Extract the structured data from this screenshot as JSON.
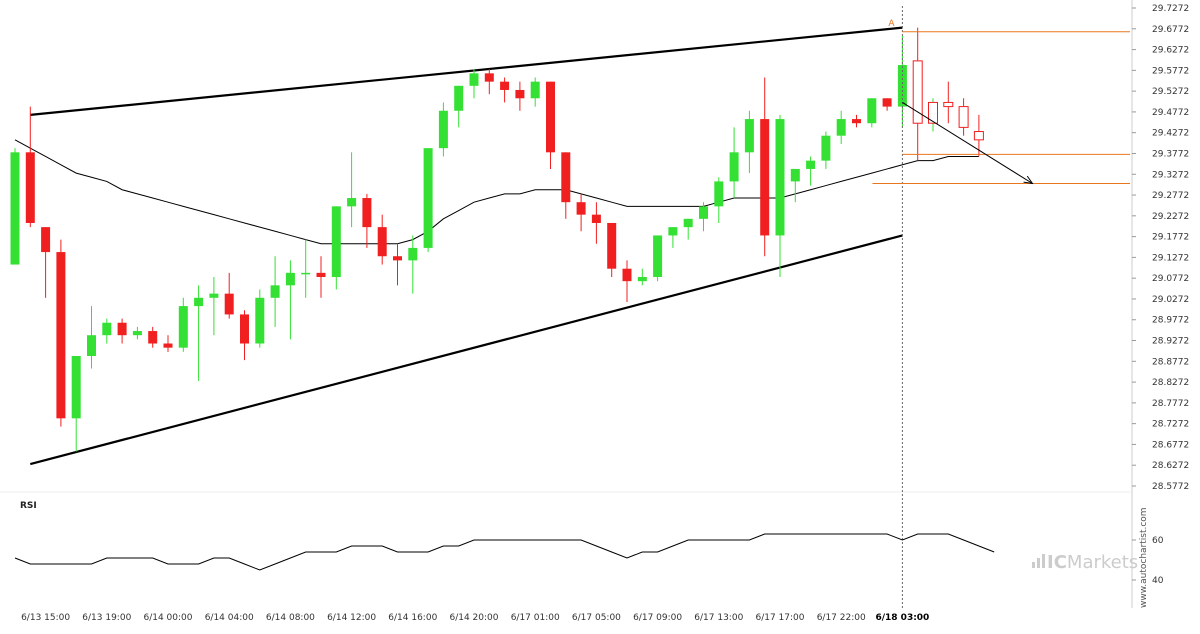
{
  "colors": {
    "up": "#33e033",
    "down": "#f02020",
    "trend_line": "#000000",
    "moving_average": "#000000",
    "signal": "#e8761e",
    "rsi": "#000000",
    "watermark": "#cccccc"
  },
  "watermark": {
    "vertical": "www.autochartist.com",
    "brand_prefix": "IC",
    "brand_suffix": "Markets"
  },
  "chart_data": [
    {
      "type": "candlestick",
      "panel": "price",
      "y_ticks": [
        "29.7272",
        "29.6772",
        "29.6272",
        "29.5772",
        "29.5272",
        "29.4772",
        "29.4272",
        "29.3772",
        "29.3272",
        "29.2772",
        "29.2272",
        "29.1772",
        "29.1272",
        "29.0772",
        "29.0272",
        "28.9772",
        "28.9272",
        "28.8772",
        "28.8272",
        "28.7772",
        "28.7272",
        "28.6772",
        "28.6272",
        "28.5772"
      ],
      "ylim": [
        28.5772,
        29.7272
      ],
      "x_ticks": [
        "6/13 15:00",
        "6/13 19:00",
        "6/14 00:00",
        "6/14 04:00",
        "6/14 08:00",
        "6/14 12:00",
        "6/14 16:00",
        "6/14 20:00",
        "6/17 01:00",
        "6/17 05:00",
        "6/17 09:00",
        "6/17 13:00",
        "6/17 17:00",
        "6/17 22:00",
        "6/18 03:00"
      ],
      "x_tick_index": [
        2,
        6,
        10,
        14,
        18,
        22,
        26,
        30,
        34,
        38,
        42,
        46,
        50,
        54,
        58
      ],
      "highlight_x_tick": "6/18 03:00",
      "candles": [
        {
          "o": 29.11,
          "h": 29.39,
          "l": 29.11,
          "c": 29.38
        },
        {
          "o": 29.38,
          "h": 29.49,
          "l": 29.2,
          "c": 29.21
        },
        {
          "o": 29.2,
          "h": 29.2,
          "l": 29.03,
          "c": 29.14
        },
        {
          "o": 29.14,
          "h": 29.17,
          "l": 28.72,
          "c": 28.74
        },
        {
          "o": 28.74,
          "h": 28.89,
          "l": 28.66,
          "c": 28.89
        },
        {
          "o": 28.89,
          "h": 29.01,
          "l": 28.86,
          "c": 28.94
        },
        {
          "o": 28.94,
          "h": 28.98,
          "l": 28.92,
          "c": 28.97
        },
        {
          "o": 28.97,
          "h": 28.98,
          "l": 28.92,
          "c": 28.94
        },
        {
          "o": 28.94,
          "h": 28.96,
          "l": 28.93,
          "c": 28.95
        },
        {
          "o": 28.95,
          "h": 28.96,
          "l": 28.91,
          "c": 28.92
        },
        {
          "o": 28.92,
          "h": 28.94,
          "l": 28.9,
          "c": 28.91
        },
        {
          "o": 28.91,
          "h": 29.03,
          "l": 28.9,
          "c": 29.01
        },
        {
          "o": 29.01,
          "h": 29.06,
          "l": 28.83,
          "c": 29.03
        },
        {
          "o": 29.03,
          "h": 29.08,
          "l": 28.94,
          "c": 29.04
        },
        {
          "o": 29.04,
          "h": 29.09,
          "l": 28.98,
          "c": 28.99
        },
        {
          "o": 28.99,
          "h": 29.0,
          "l": 28.88,
          "c": 28.92
        },
        {
          "o": 28.92,
          "h": 29.05,
          "l": 28.91,
          "c": 29.03
        },
        {
          "o": 29.03,
          "h": 29.13,
          "l": 28.96,
          "c": 29.06
        },
        {
          "o": 29.06,
          "h": 29.12,
          "l": 28.93,
          "c": 29.09
        },
        {
          "o": 29.09,
          "h": 29.17,
          "l": 29.03,
          "c": 29.09
        },
        {
          "o": 29.09,
          "h": 29.13,
          "l": 29.03,
          "c": 29.08
        },
        {
          "o": 29.08,
          "h": 29.25,
          "l": 29.05,
          "c": 29.25
        },
        {
          "o": 29.25,
          "h": 29.38,
          "l": 29.2,
          "c": 29.27
        },
        {
          "o": 29.27,
          "h": 29.28,
          "l": 29.15,
          "c": 29.2
        },
        {
          "o": 29.2,
          "h": 29.23,
          "l": 29.11,
          "c": 29.13
        },
        {
          "o": 29.13,
          "h": 29.16,
          "l": 29.06,
          "c": 29.12
        },
        {
          "o": 29.12,
          "h": 29.18,
          "l": 29.04,
          "c": 29.15
        },
        {
          "o": 29.15,
          "h": 29.39,
          "l": 29.14,
          "c": 29.39
        },
        {
          "o": 29.39,
          "h": 29.5,
          "l": 29.37,
          "c": 29.48
        },
        {
          "o": 29.48,
          "h": 29.54,
          "l": 29.44,
          "c": 29.54
        },
        {
          "o": 29.54,
          "h": 29.58,
          "l": 29.51,
          "c": 29.57
        },
        {
          "o": 29.57,
          "h": 29.58,
          "l": 29.52,
          "c": 29.55
        },
        {
          "o": 29.55,
          "h": 29.56,
          "l": 29.5,
          "c": 29.53
        },
        {
          "o": 29.53,
          "h": 29.55,
          "l": 29.48,
          "c": 29.51
        },
        {
          "o": 29.51,
          "h": 29.56,
          "l": 29.49,
          "c": 29.55
        },
        {
          "o": 29.55,
          "h": 29.55,
          "l": 29.34,
          "c": 29.38
        },
        {
          "o": 29.38,
          "h": 29.38,
          "l": 29.22,
          "c": 29.26
        },
        {
          "o": 29.26,
          "h": 29.28,
          "l": 29.19,
          "c": 29.23
        },
        {
          "o": 29.23,
          "h": 29.26,
          "l": 29.16,
          "c": 29.21
        },
        {
          "o": 29.21,
          "h": 29.21,
          "l": 29.08,
          "c": 29.1
        },
        {
          "o": 29.1,
          "h": 29.12,
          "l": 29.02,
          "c": 29.07
        },
        {
          "o": 29.07,
          "h": 29.1,
          "l": 29.06,
          "c": 29.08
        },
        {
          "o": 29.08,
          "h": 29.18,
          "l": 29.07,
          "c": 29.18
        },
        {
          "o": 29.18,
          "h": 29.2,
          "l": 29.15,
          "c": 29.2
        },
        {
          "o": 29.2,
          "h": 29.22,
          "l": 29.17,
          "c": 29.22
        },
        {
          "o": 29.22,
          "h": 29.26,
          "l": 29.19,
          "c": 29.25
        },
        {
          "o": 29.25,
          "h": 29.32,
          "l": 29.21,
          "c": 29.31
        },
        {
          "o": 29.31,
          "h": 29.44,
          "l": 29.27,
          "c": 29.38
        },
        {
          "o": 29.38,
          "h": 29.48,
          "l": 29.33,
          "c": 29.46
        },
        {
          "o": 29.46,
          "h": 29.56,
          "l": 29.13,
          "c": 29.18
        },
        {
          "o": 29.18,
          "h": 29.47,
          "l": 29.08,
          "c": 29.46
        },
        {
          "o": 29.31,
          "h": 29.34,
          "l": 29.26,
          "c": 29.34
        },
        {
          "o": 29.34,
          "h": 29.37,
          "l": 29.3,
          "c": 29.36
        },
        {
          "o": 29.36,
          "h": 29.43,
          "l": 29.34,
          "c": 29.42
        },
        {
          "o": 29.42,
          "h": 29.48,
          "l": 29.4,
          "c": 29.46
        },
        {
          "o": 29.46,
          "h": 29.47,
          "l": 29.44,
          "c": 29.45
        },
        {
          "o": 29.45,
          "h": 29.51,
          "l": 29.44,
          "c": 29.51
        },
        {
          "o": 29.51,
          "h": 29.51,
          "l": 29.48,
          "c": 29.49
        },
        {
          "o": 29.49,
          "h": 29.66,
          "l": 29.44,
          "c": 29.59
        },
        {
          "o": 29.6,
          "h": 29.68,
          "l": 29.36,
          "c": 29.45
        },
        {
          "o": 29.45,
          "h": 29.51,
          "l": 29.43,
          "c": 29.5
        },
        {
          "o": 29.5,
          "h": 29.55,
          "l": 29.45,
          "c": 29.49
        },
        {
          "o": 29.49,
          "h": 29.51,
          "l": 29.42,
          "c": 29.44
        },
        {
          "o": 29.43,
          "h": 29.47,
          "l": 29.37,
          "c": 29.41
        }
      ],
      "last_actual_index": 58,
      "moving_average": [
        29.41,
        29.39,
        29.37,
        29.35,
        29.33,
        29.32,
        29.31,
        29.29,
        29.28,
        29.27,
        29.26,
        29.25,
        29.24,
        29.23,
        29.22,
        29.21,
        29.2,
        29.19,
        29.18,
        29.17,
        29.16,
        29.16,
        29.16,
        29.16,
        29.16,
        29.16,
        29.17,
        29.19,
        29.22,
        29.24,
        29.26,
        29.27,
        29.28,
        29.28,
        29.29,
        29.29,
        29.29,
        29.28,
        29.27,
        29.26,
        29.25,
        29.25,
        29.25,
        29.25,
        29.25,
        29.25,
        29.26,
        29.27,
        29.27,
        29.27,
        29.27,
        29.28,
        29.29,
        29.3,
        29.31,
        29.32,
        29.33,
        29.34,
        29.35,
        29.36,
        29.36,
        29.37,
        29.37,
        29.37
      ],
      "upper_trendline": {
        "from": {
          "i": 1,
          "v": 29.47
        },
        "to": {
          "i": 58,
          "v": 29.68
        }
      },
      "lower_trendline": {
        "from": {
          "i": 1,
          "v": 28.63
        },
        "to": {
          "i": 58,
          "v": 29.18
        }
      },
      "signal": {
        "label": "A",
        "marker_index": 58,
        "resistance": 29.67,
        "level": 29.375,
        "target": 29.305,
        "forecast_from": {
          "i": 58,
          "v": 29.5
        },
        "forecast_to": {
          "i": 66.5,
          "v": 29.305
        }
      }
    },
    {
      "type": "line",
      "panel": "rsi",
      "title": "RSI",
      "y_ticks": [
        60,
        40
      ],
      "ylim": [
        30,
        80
      ],
      "values": [
        51,
        48,
        48,
        48,
        48,
        48,
        51,
        51,
        51,
        51,
        48,
        48,
        48,
        51,
        51,
        48,
        45,
        48,
        51,
        54,
        54,
        54,
        57,
        57,
        57,
        54,
        54,
        54,
        57,
        57,
        60,
        60,
        60,
        60,
        60,
        60,
        60,
        60,
        57,
        54,
        51,
        54,
        54,
        57,
        60,
        60,
        60,
        60,
        60,
        63,
        63,
        63,
        63,
        63,
        63,
        63,
        63,
        63,
        60,
        63,
        63,
        63,
        60,
        57,
        54
      ]
    }
  ]
}
